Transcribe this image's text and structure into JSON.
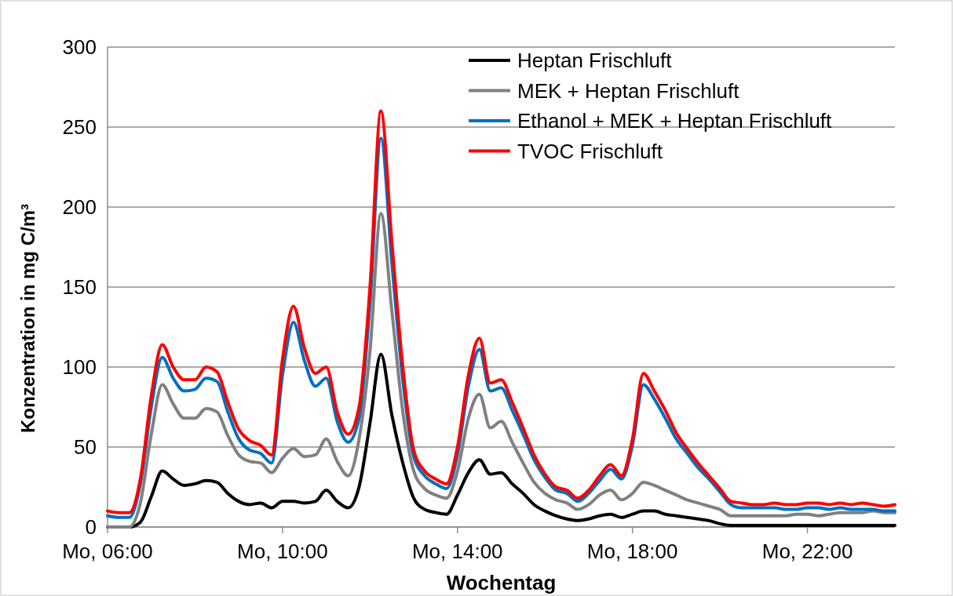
{
  "chart_data": {
    "type": "line",
    "xlabel": "Wochentag",
    "ylabel": "Konzentration in mg C/m³",
    "categories": [
      "Mo, 06:00",
      null,
      null,
      null,
      null,
      null,
      null,
      null,
      null,
      null,
      null,
      null,
      null,
      null,
      null,
      null,
      "Mo, 10:00",
      null,
      null,
      null,
      null,
      null,
      null,
      null,
      null,
      null,
      null,
      null,
      null,
      null,
      null,
      null,
      "Mo, 14:00",
      null,
      null,
      null,
      null,
      null,
      null,
      null,
      null,
      null,
      null,
      null,
      null,
      null,
      null,
      null,
      "Mo, 18:00",
      null,
      null,
      null,
      null,
      null,
      null,
      null,
      null,
      null,
      null,
      null,
      null,
      null,
      null,
      null,
      "Mo, 22:00",
      null,
      null,
      null,
      null,
      null,
      null,
      null,
      null
    ],
    "series": [
      {
        "name": "Heptan Frischluft",
        "color": "#000000",
        "values": [
          0,
          0,
          0,
          3,
          19,
          35,
          30,
          26,
          27,
          29,
          28,
          21,
          16,
          14,
          15,
          12,
          16,
          16,
          15,
          16,
          23,
          16,
          12,
          25,
          65,
          108,
          70,
          40,
          18,
          11,
          9,
          8,
          20,
          34,
          42,
          33,
          34,
          27,
          21,
          14,
          10,
          7,
          5,
          4,
          5,
          7,
          8,
          6,
          8,
          10,
          10,
          8,
          7,
          6,
          5,
          4,
          2,
          1,
          1,
          1,
          1,
          1,
          1,
          1,
          1,
          1,
          1,
          1,
          1,
          1,
          1,
          1,
          1
        ]
      },
      {
        "name": "MEK + Heptan Frischluft",
        "color": "#808080",
        "values": [
          0,
          0,
          0,
          15,
          58,
          89,
          77,
          68,
          68,
          74,
          72,
          57,
          45,
          41,
          40,
          34,
          43,
          49,
          44,
          45,
          55,
          41,
          32,
          55,
          110,
          196,
          135,
          72,
          35,
          24,
          20,
          18,
          35,
          68,
          83,
          62,
          66,
          53,
          40,
          28,
          21,
          17,
          15,
          11,
          14,
          20,
          23,
          17,
          21,
          28,
          26,
          23,
          20,
          17,
          15,
          13,
          11,
          7,
          7,
          7,
          7,
          7,
          7,
          8,
          8,
          7,
          8,
          9,
          9,
          9,
          10,
          9,
          9
        ]
      },
      {
        "name": "Ethanol + MEK + Heptan Frischluft",
        "color": "#0070c0",
        "values": [
          7,
          6,
          6,
          27,
          75,
          106,
          93,
          85,
          86,
          93,
          91,
          72,
          55,
          48,
          46,
          40,
          95,
          128,
          104,
          88,
          93,
          66,
          53,
          68,
          140,
          243,
          165,
          92,
          44,
          32,
          27,
          24,
          45,
          88,
          111,
          85,
          87,
          73,
          58,
          42,
          31,
          23,
          21,
          16,
          21,
          29,
          36,
          30,
          51,
          89,
          80,
          68,
          55,
          46,
          37,
          30,
          22,
          14,
          12,
          12,
          12,
          12,
          11,
          11,
          12,
          12,
          11,
          12,
          11,
          11,
          11,
          10,
          10
        ]
      },
      {
        "name": "TVOC Frischluft",
        "color": "#ff0000",
        "values": [
          10,
          9,
          9,
          30,
          82,
          114,
          100,
          92,
          92,
          100,
          97,
          78,
          61,
          54,
          51,
          45,
          105,
          138,
          112,
          96,
          100,
          72,
          58,
          75,
          150,
          260,
          178,
          100,
          48,
          35,
          30,
          27,
          50,
          95,
          118,
          90,
          92,
          78,
          62,
          45,
          33,
          25,
          23,
          18,
          23,
          32,
          39,
          32,
          55,
          96,
          85,
          73,
          59,
          49,
          40,
          32,
          24,
          16,
          15,
          14,
          14,
          15,
          14,
          14,
          15,
          15,
          14,
          15,
          14,
          15,
          14,
          13,
          14
        ]
      }
    ],
    "ylim": [
      0,
      300
    ],
    "yticks": [
      0,
      50,
      100,
      150,
      200,
      250,
      300
    ],
    "grid": "y",
    "legend": "top right",
    "marker": "none",
    "line_style": "solid"
  }
}
